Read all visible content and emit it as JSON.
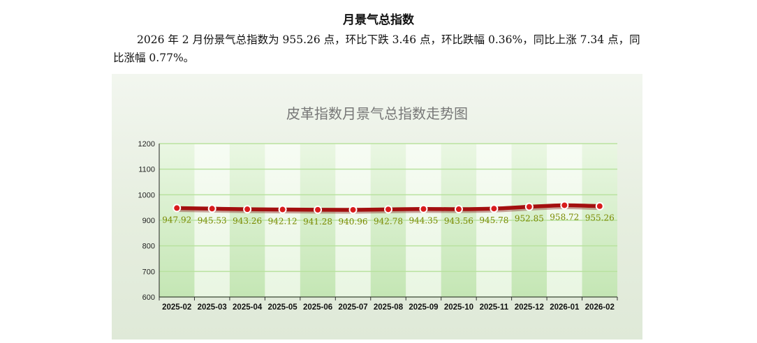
{
  "heading": "月景气总指数",
  "paragraph": "2026 年 2 月份景气总指数为 955.26 点，环比下跌 3.46 点，环比跌幅 0.36%，同比上涨 7.34 点，同比涨幅 0.77%。",
  "colors": {
    "line": "#a30f0f",
    "marker": "#d81c1c",
    "label": "#7a8a00",
    "band_dark": "#c4e6b4",
    "band_light": "#e9f6e2"
  },
  "chart_data": {
    "type": "line",
    "title": "皮革指数月景气总指数走势图",
    "xlabel": "",
    "ylabel": "",
    "ylim": [
      600,
      1200
    ],
    "yticks": [
      600,
      700,
      800,
      900,
      1000,
      1100,
      1200
    ],
    "grid": true,
    "legend": "none",
    "categories": [
      "2025-02",
      "2025-03",
      "2025-04",
      "2025-05",
      "2025-06",
      "2025-07",
      "2025-08",
      "2025-09",
      "2025-10",
      "2025-11",
      "2025-12",
      "2026-01",
      "2026-02"
    ],
    "values": [
      947.92,
      945.53,
      943.26,
      942.12,
      941.28,
      940.96,
      942.78,
      944.35,
      943.56,
      945.78,
      952.85,
      958.72,
      955.26
    ],
    "value_labels": [
      "947.92",
      "945.53",
      "943.26",
      "942.12",
      "941.28",
      "940.96",
      "942.78",
      "944.35",
      "943.56",
      "945.78",
      "952.85",
      "958.72",
      "955.26"
    ]
  }
}
